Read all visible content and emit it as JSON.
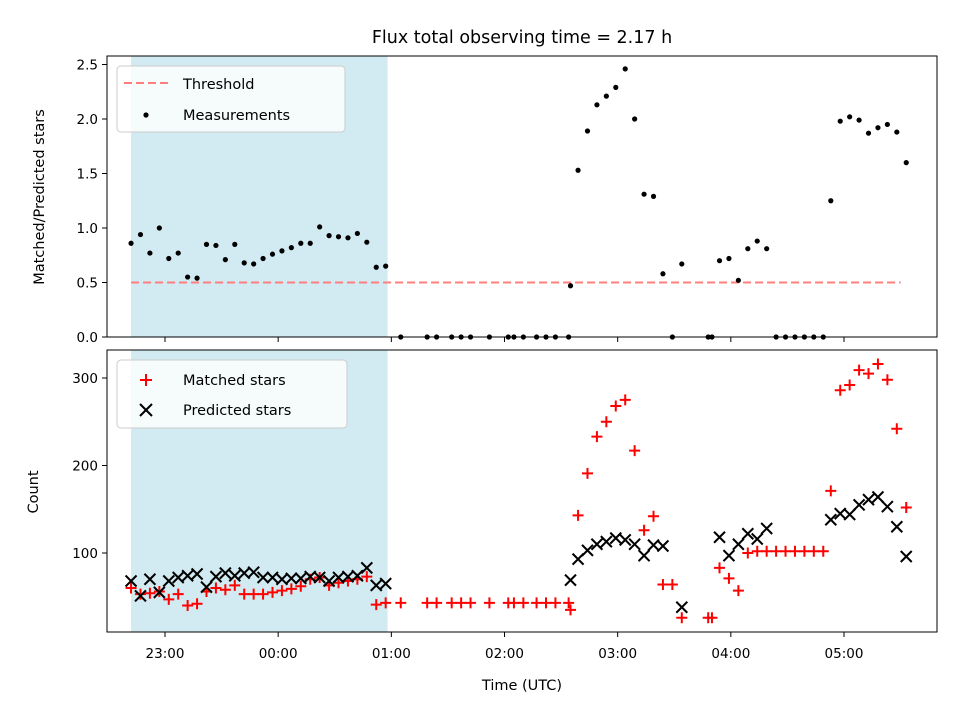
{
  "chart_data": {
    "title": "Flux total observing time = 2.17 h",
    "xlabel": "Time (UTC)",
    "x_ticks": [
      "23:00",
      "00:00",
      "01:00",
      "02:00",
      "03:00",
      "04:00",
      "05:00"
    ],
    "shaded_interval": {
      "start": "22:42",
      "end": "00:58",
      "color": "#add8e6"
    },
    "panels": [
      {
        "type": "scatter",
        "ylabel": "Matched/Predicted stars",
        "ylim": [
          0,
          2.6
        ],
        "y_ticks": [
          "0.0",
          "0.5",
          "1.0",
          "1.5",
          "2.0",
          "2.5"
        ],
        "legend": {
          "placement": "upper left",
          "entries": [
            "Threshold",
            "Measurements"
          ]
        },
        "threshold": {
          "name": "Threshold",
          "value": 0.5,
          "x_start": "22:42",
          "x_end": "05:30",
          "color": "#ff7f7f",
          "style": "dashed"
        },
        "series": [
          {
            "name": "Measurements",
            "marker": "dot",
            "color": "#000000",
            "points": [
              [
                "22:42",
                0.86
              ],
              [
                "22:47",
                0.94
              ],
              [
                "22:52",
                0.77
              ],
              [
                "22:57",
                1.0
              ],
              [
                "23:02",
                0.72
              ],
              [
                "23:07",
                0.77
              ],
              [
                "23:12",
                0.55
              ],
              [
                "23:17",
                0.54
              ],
              [
                "23:22",
                0.85
              ],
              [
                "23:27",
                0.84
              ],
              [
                "23:32",
                0.71
              ],
              [
                "23:37",
                0.85
              ],
              [
                "23:42",
                0.68
              ],
              [
                "23:47",
                0.67
              ],
              [
                "23:52",
                0.72
              ],
              [
                "23:57",
                0.76
              ],
              [
                "00:02",
                0.79
              ],
              [
                "00:07",
                0.82
              ],
              [
                "00:12",
                0.86
              ],
              [
                "00:17",
                0.86
              ],
              [
                "00:22",
                1.01
              ],
              [
                "00:27",
                0.93
              ],
              [
                "00:32",
                0.92
              ],
              [
                "00:37",
                0.91
              ],
              [
                "00:42",
                0.95
              ],
              [
                "00:47",
                0.87
              ],
              [
                "00:52",
                0.64
              ],
              [
                "00:57",
                0.65
              ],
              [
                "01:05",
                0.0
              ],
              [
                "01:19",
                0.0
              ],
              [
                "01:24",
                0.0
              ],
              [
                "01:32",
                0.0
              ],
              [
                "01:37",
                0.0
              ],
              [
                "01:42",
                0.0
              ],
              [
                "01:52",
                0.0
              ],
              [
                "02:02",
                0.0
              ],
              [
                "02:05",
                0.0
              ],
              [
                "02:10",
                0.0
              ],
              [
                "02:17",
                0.0
              ],
              [
                "02:22",
                0.0
              ],
              [
                "02:27",
                0.0
              ],
              [
                "02:34",
                0.0
              ],
              [
                "02:35",
                0.47
              ],
              [
                "02:39",
                1.53
              ],
              [
                "02:44",
                1.89
              ],
              [
                "02:49",
                2.13
              ],
              [
                "02:54",
                2.21
              ],
              [
                "02:59",
                2.29
              ],
              [
                "03:04",
                2.46
              ],
              [
                "03:09",
                2.0
              ],
              [
                "03:14",
                1.31
              ],
              [
                "03:19",
                1.29
              ],
              [
                "03:24",
                0.58
              ],
              [
                "03:29",
                0.0
              ],
              [
                "03:34",
                0.67
              ],
              [
                "03:48",
                0.0
              ],
              [
                "03:50",
                0.0
              ],
              [
                "03:54",
                0.7
              ],
              [
                "03:59",
                0.72
              ],
              [
                "04:04",
                0.52
              ],
              [
                "04:09",
                0.81
              ],
              [
                "04:14",
                0.88
              ],
              [
                "04:19",
                0.81
              ],
              [
                "04:24",
                0.0
              ],
              [
                "04:29",
                0.0
              ],
              [
                "04:34",
                0.0
              ],
              [
                "04:39",
                0.0
              ],
              [
                "04:44",
                0.0
              ],
              [
                "04:49",
                0.0
              ],
              [
                "04:53",
                1.25
              ],
              [
                "04:58",
                1.98
              ],
              [
                "05:03",
                2.02
              ],
              [
                "05:08",
                1.99
              ],
              [
                "05:13",
                1.87
              ],
              [
                "05:18",
                1.92
              ],
              [
                "05:23",
                1.95
              ],
              [
                "05:28",
                1.88
              ],
              [
                "05:33",
                1.6
              ]
            ]
          }
        ]
      },
      {
        "type": "scatter",
        "ylabel": "Count",
        "ylim": [
          10,
          328
        ],
        "y_ticks": [
          "100",
          "200",
          "300"
        ],
        "legend": {
          "placement": "upper left",
          "entries": [
            "Matched stars",
            "Predicted stars"
          ]
        },
        "series": [
          {
            "name": "Matched stars",
            "marker": "plus",
            "color": "#ff0000",
            "points": [
              [
                "22:42",
                60
              ],
              [
                "22:47",
                53
              ],
              [
                "22:52",
                54
              ],
              [
                "22:57",
                56
              ],
              [
                "23:02",
                47
              ],
              [
                "23:07",
                53
              ],
              [
                "23:12",
                40
              ],
              [
                "23:17",
                42
              ],
              [
                "23:22",
                56
              ],
              [
                "23:27",
                60
              ],
              [
                "23:32",
                58
              ],
              [
                "23:37",
                63
              ],
              [
                "23:42",
                53
              ],
              [
                "23:47",
                53
              ],
              [
                "23:52",
                53
              ],
              [
                "23:57",
                55
              ],
              [
                "00:02",
                57
              ],
              [
                "00:07",
                59
              ],
              [
                "00:12",
                62
              ],
              [
                "00:17",
                70
              ],
              [
                "00:22",
                72
              ],
              [
                "00:27",
                63
              ],
              [
                "00:32",
                66
              ],
              [
                "00:37",
                68
              ],
              [
                "00:42",
                70
              ],
              [
                "00:47",
                73
              ],
              [
                "00:52",
                41
              ],
              [
                "00:57",
                43
              ],
              [
                "01:05",
                43
              ],
              [
                "01:19",
                43
              ],
              [
                "01:24",
                43
              ],
              [
                "01:32",
                43
              ],
              [
                "01:37",
                43
              ],
              [
                "01:42",
                43
              ],
              [
                "01:52",
                43
              ],
              [
                "02:02",
                43
              ],
              [
                "02:05",
                43
              ],
              [
                "02:10",
                43
              ],
              [
                "02:17",
                43
              ],
              [
                "02:22",
                43
              ],
              [
                "02:27",
                43
              ],
              [
                "02:34",
                43
              ],
              [
                "02:35",
                35
              ],
              [
                "02:39",
                143
              ],
              [
                "02:44",
                191
              ],
              [
                "02:49",
                233
              ],
              [
                "02:54",
                250
              ],
              [
                "02:59",
                268
              ],
              [
                "03:04",
                275
              ],
              [
                "03:09",
                217
              ],
              [
                "03:14",
                126
              ],
              [
                "03:19",
                142
              ],
              [
                "03:24",
                64
              ],
              [
                "03:29",
                64
              ],
              [
                "03:34",
                26
              ],
              [
                "03:48",
                26
              ],
              [
                "03:50",
                26
              ],
              [
                "03:54",
                83
              ],
              [
                "03:59",
                71
              ],
              [
                "04:04",
                57
              ],
              [
                "04:09",
                100
              ],
              [
                "04:14",
                102
              ],
              [
                "04:19",
                102
              ],
              [
                "04:24",
                102
              ],
              [
                "04:29",
                102
              ],
              [
                "04:34",
                102
              ],
              [
                "04:39",
                102
              ],
              [
                "04:44",
                102
              ],
              [
                "04:49",
                102
              ],
              [
                "04:53",
                171
              ],
              [
                "04:58",
                286
              ],
              [
                "05:03",
                292
              ],
              [
                "05:08",
                309
              ],
              [
                "05:13",
                305
              ],
              [
                "05:18",
                316
              ],
              [
                "05:23",
                298
              ],
              [
                "05:28",
                242
              ],
              [
                "05:33",
                152
              ]
            ]
          },
          {
            "name": "Predicted stars",
            "marker": "x",
            "color": "#000000",
            "points": [
              [
                "22:42",
                68
              ],
              [
                "22:47",
                51
              ],
              [
                "22:52",
                70
              ],
              [
                "22:57",
                55
              ],
              [
                "23:02",
                68
              ],
              [
                "23:07",
                72
              ],
              [
                "23:12",
                74
              ],
              [
                "23:17",
                76
              ],
              [
                "23:22",
                61
              ],
              [
                "23:27",
                73
              ],
              [
                "23:32",
                77
              ],
              [
                "23:37",
                74
              ],
              [
                "23:42",
                77
              ],
              [
                "23:47",
                78
              ],
              [
                "23:52",
                72
              ],
              [
                "23:57",
                72
              ],
              [
                "00:02",
                70
              ],
              [
                "00:07",
                71
              ],
              [
                "00:12",
                71
              ],
              [
                "00:17",
                73
              ],
              [
                "00:22",
                72
              ],
              [
                "00:27",
                68
              ],
              [
                "00:32",
                72
              ],
              [
                "00:37",
                73
              ],
              [
                "00:42",
                74
              ],
              [
                "00:47",
                83
              ],
              [
                "00:52",
                63
              ],
              [
                "00:57",
                65
              ],
              [
                "02:35",
                69
              ],
              [
                "02:39",
                93
              ],
              [
                "02:44",
                103
              ],
              [
                "02:49",
                110
              ],
              [
                "02:54",
                113
              ],
              [
                "02:59",
                117
              ],
              [
                "03:04",
                115
              ],
              [
                "03:09",
                110
              ],
              [
                "03:14",
                97
              ],
              [
                "03:19",
                109
              ],
              [
                "03:24",
                108
              ],
              [
                "03:34",
                38
              ],
              [
                "03:54",
                118
              ],
              [
                "03:59",
                97
              ],
              [
                "04:04",
                110
              ],
              [
                "04:09",
                122
              ],
              [
                "04:14",
                116
              ],
              [
                "04:19",
                128
              ],
              [
                "04:53",
                138
              ],
              [
                "04:58",
                145
              ],
              [
                "05:03",
                144
              ],
              [
                "05:08",
                155
              ],
              [
                "05:13",
                161
              ],
              [
                "05:18",
                164
              ],
              [
                "05:23",
                153
              ],
              [
                "05:28",
                130
              ],
              [
                "05:33",
                96
              ]
            ]
          }
        ]
      }
    ]
  }
}
